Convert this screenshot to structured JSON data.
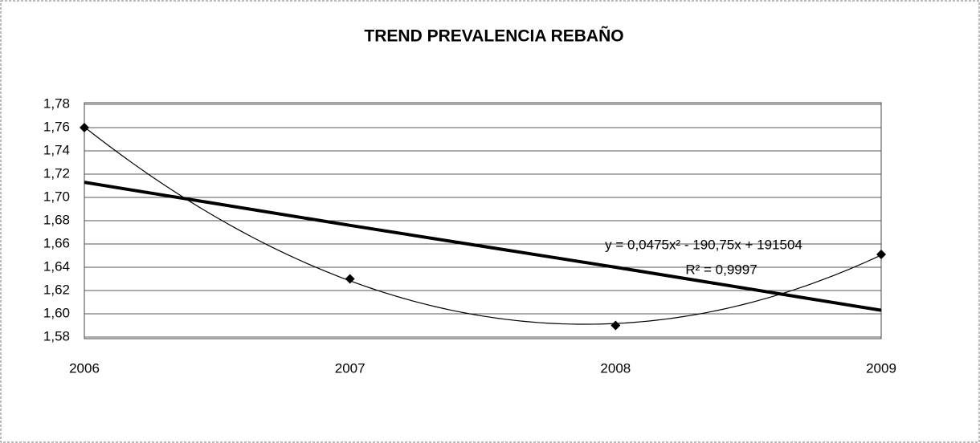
{
  "chart_data": {
    "type": "line",
    "title": "TREND PREVALENCIA REBAÑO",
    "categories": [
      "2006",
      "2007",
      "2008",
      "2009"
    ],
    "series": [
      {
        "color": "#000000",
        "values": [
          1.76,
          1.63,
          1.59,
          1.651
        ],
        "marker": "diamond",
        "width": 1
      },
      {
        "color": "#000000",
        "values": [
          1.713,
          1.676,
          1.64,
          1.603
        ],
        "width": 4
      }
    ],
    "trendline": {
      "type": "polynomial",
      "order": 2,
      "series": 0,
      "equation": "y = 0,0475x² - 190,75x + 191504",
      "r2": "R² = 0,9997"
    },
    "ylim": [
      1.58,
      1.78
    ],
    "yticks": [
      {
        "value": 1.58,
        "label": "1,58"
      },
      {
        "value": 1.6,
        "label": "1,60"
      },
      {
        "value": 1.62,
        "label": "1,62"
      },
      {
        "value": 1.64,
        "label": "1,64"
      },
      {
        "value": 1.66,
        "label": "1,66"
      },
      {
        "value": 1.68,
        "label": "1,68"
      },
      {
        "value": 1.7,
        "label": "1,70"
      },
      {
        "value": 1.72,
        "label": "1,72"
      },
      {
        "value": 1.74,
        "label": "1,74"
      },
      {
        "value": 1.76,
        "label": "1,76"
      },
      {
        "value": 1.78,
        "label": "1,78"
      }
    ],
    "grid": true
  }
}
